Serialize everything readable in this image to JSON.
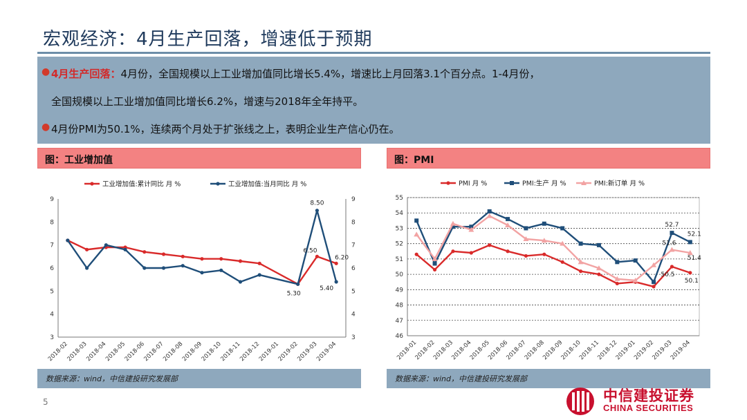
{
  "slide": {
    "title": "宏观经济：4月生产回落，增速低于预期",
    "page_number": "5",
    "bullets": [
      {
        "highlight": "4月生产回落：",
        "line1": "4月份，全国规模以上工业增加值同比增长5.4%，增速比上月回落3.1个百分点。1-4月份，",
        "line2": "全国规模以上工业增加值同比增长6.2%，增速与2018年全年持平。"
      },
      {
        "highlight": "",
        "line1": "4月份PMI为50.1%，连续两个月处于扩张线之上，表明企业生产信心仍在。",
        "line2": ""
      }
    ],
    "logo": {
      "cn": "中信建投证券",
      "en": "CHINA SECURITIES"
    },
    "colors": {
      "red": "#d92a2a",
      "navy": "#1f4e79",
      "pink": "#f2a3a3",
      "panel_head": "#f38282",
      "slate": "#8ea8bd"
    }
  },
  "panels": [
    {
      "header": "图：工业增加值",
      "source": "数据来源：wind，中信建投研究发展部"
    },
    {
      "header": "图：PMI",
      "source": "数据来源：wind，中信建投研究发展部"
    }
  ],
  "chart_data": [
    {
      "type": "line",
      "x": [
        "2018-02",
        "2018-03",
        "2018-04",
        "2018-05",
        "2018-06",
        "2018-07",
        "2018-08",
        "2018-09",
        "2018-10",
        "2018-11",
        "2018-12",
        "2019-01",
        "2019-02",
        "2019-03",
        "2019-04"
      ],
      "series": [
        {
          "name": "工业增加值:累计同比 月 %",
          "color": "#d92a2a",
          "marker": "circle",
          "axis": "left",
          "values": [
            7.2,
            6.8,
            6.9,
            6.9,
            6.7,
            6.6,
            6.5,
            6.4,
            6.4,
            6.3,
            6.2,
            null,
            5.3,
            6.5,
            6.2
          ]
        },
        {
          "name": "工业增加值:当月同比 月 %",
          "color": "#1f4e79",
          "marker": "circle",
          "axis": "right",
          "values": [
            7.2,
            6.0,
            7.0,
            6.8,
            6.0,
            6.0,
            6.1,
            5.8,
            5.9,
            5.4,
            5.7,
            null,
            5.3,
            8.5,
            5.4
          ]
        }
      ],
      "ylim": [
        3,
        9
      ],
      "y_ticks": [
        "3",
        "4",
        "5",
        "6",
        "7",
        "8",
        "9"
      ],
      "y2lim": [
        3,
        9
      ],
      "y2_ticks": [
        "3",
        "4",
        "5",
        "6",
        "7",
        "8",
        "9"
      ],
      "data_labels": [
        {
          "text": "8.50",
          "series": 1,
          "index": 13
        },
        {
          "text": "6.50",
          "series": 0,
          "index": 13
        },
        {
          "text": "6.20",
          "series": 0,
          "index": 14
        },
        {
          "text": "5.30",
          "series": 0,
          "index": 12
        },
        {
          "text": "5.40",
          "series": 1,
          "index": 14
        }
      ],
      "legend": "top"
    },
    {
      "type": "line",
      "x": [
        "2018-01",
        "2018-02",
        "2018-03",
        "2018-04",
        "2018-05",
        "2018-06",
        "2018-07",
        "2018-08",
        "2018-09",
        "2018-10",
        "2018-11",
        "2018-12",
        "2019-01",
        "2019-02",
        "2019-03",
        "2019-04"
      ],
      "series": [
        {
          "name": "PMI 月 %",
          "color": "#d92a2a",
          "marker": "circle",
          "values": [
            51.3,
            50.3,
            51.5,
            51.4,
            51.9,
            51.5,
            51.2,
            51.3,
            50.8,
            50.2,
            50.0,
            49.4,
            49.5,
            49.2,
            50.5,
            50.1
          ]
        },
        {
          "name": "PMI:生产 月 %",
          "color": "#1f4e79",
          "marker": "square",
          "values": [
            53.5,
            50.7,
            53.1,
            53.1,
            54.1,
            53.6,
            53.0,
            53.3,
            53.0,
            52.0,
            51.9,
            50.8,
            50.9,
            49.5,
            52.7,
            52.1
          ]
        },
        {
          "name": "PMI:新订单 月 %",
          "color": "#f2a3a3",
          "marker": "triangle",
          "values": [
            52.6,
            51.0,
            53.3,
            52.9,
            53.8,
            53.2,
            52.3,
            52.2,
            52.0,
            50.8,
            50.4,
            49.7,
            49.6,
            50.6,
            51.6,
            51.4
          ]
        }
      ],
      "ylim": [
        46,
        55
      ],
      "y_ticks": [
        "46",
        "47",
        "48",
        "49",
        "50",
        "51",
        "52",
        "53",
        "54",
        "55"
      ],
      "grid": true,
      "data_labels": [
        {
          "text": "52.7",
          "series": 1,
          "index": 14
        },
        {
          "text": "52.1",
          "series": 1,
          "index": 15
        },
        {
          "text": "51.6",
          "series": 2,
          "index": 14
        },
        {
          "text": "51.4",
          "series": 2,
          "index": 15
        },
        {
          "text": "50.5",
          "series": 0,
          "index": 14
        },
        {
          "text": "50.1",
          "series": 0,
          "index": 15
        }
      ],
      "legend": "top"
    }
  ]
}
